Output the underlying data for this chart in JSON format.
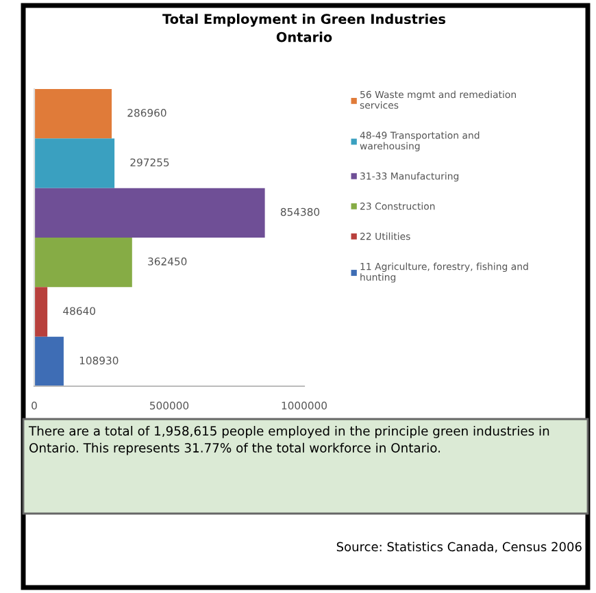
{
  "chart_data": {
    "type": "bar",
    "orientation": "horizontal",
    "title": "Total Employment in Green Industries\nOntario",
    "categories": [
      null,
      null,
      null,
      null,
      null,
      null
    ],
    "series": [
      {
        "name": "56 Waste mgmt and remediation\nservices",
        "color": "#e07b39",
        "values": [
          286960,
          null,
          null,
          null,
          null,
          null
        ]
      },
      {
        "name": "48-49 Transportation and\nwarehousing",
        "color": "#3aa0c0",
        "values": [
          null,
          297255,
          null,
          null,
          null,
          null
        ]
      },
      {
        "name": "31-33 Manufacturing",
        "color": "#6f4f96",
        "values": [
          null,
          null,
          854380,
          null,
          null,
          null
        ]
      },
      {
        "name": "23 Construction",
        "color": "#86ac45",
        "values": [
          null,
          null,
          null,
          362450,
          null,
          null
        ]
      },
      {
        "name": "22 Utilities",
        "color": "#b8403c",
        "values": [
          null,
          null,
          null,
          null,
          48640,
          null
        ]
      },
      {
        "name": "11 Agriculture, forestry, fishing and\nhunting",
        "color": "#3e6db5",
        "values": [
          null,
          null,
          null,
          null,
          null,
          108930
        ]
      }
    ],
    "data_labels": true,
    "xlim": [
      0,
      1000000
    ],
    "xticks": [
      0,
      500000,
      1000000
    ],
    "legend": "right",
    "annotations": [
      "There are a total of 1,958,615 people employed in the principle green industries in Ontario. This represents 31.77% of the total workforce in Ontario.",
      "Source: Statistics Canada, Census 2006"
    ]
  }
}
